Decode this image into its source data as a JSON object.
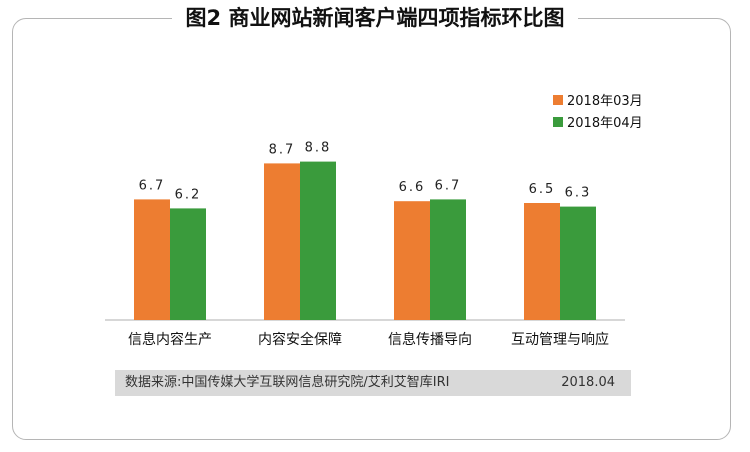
{
  "chart_data": {
    "type": "bar",
    "title": "图2 商业网站新闻客户端四项指标环比图",
    "categories": [
      "信息内容生产",
      "内容安全保障",
      "信息传播导向",
      "互动管理与响应"
    ],
    "series": [
      {
        "name": "2018年03月",
        "values": [
          6.7,
          8.7,
          6.6,
          6.5
        ],
        "labels": [
          "6.7",
          "8.7",
          "6.6",
          "6.5"
        ],
        "color": "#ed7d31"
      },
      {
        "name": "2018年04月",
        "values": [
          6.2,
          8.8,
          6.7,
          6.3
        ],
        "labels": [
          "6.2",
          "8.8",
          "6.7",
          "6.3"
        ],
        "color": "#3a9b3c"
      }
    ],
    "ylim": [
      0,
      10
    ],
    "grid": false,
    "legend": "top-right"
  },
  "source": {
    "text": "数据来源:中国传媒大学互联网信息研究院/艾利艾智库IRI",
    "date": "2018.04"
  }
}
